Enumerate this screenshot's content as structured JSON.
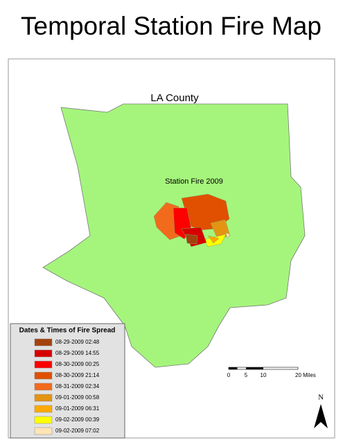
{
  "title": "Temporal Station Fire Map",
  "map": {
    "county_label": "LA County",
    "fire_label": "Station Fire 2009"
  },
  "legend": {
    "title": "Dates & Times of Fire Spread",
    "items": [
      {
        "label": "08-29-2009 02:48",
        "color": "#a3420d"
      },
      {
        "label": "08-29-2009 14:55",
        "color": "#d60000"
      },
      {
        "label": "08-30-2009 00:25",
        "color": "#ff0000"
      },
      {
        "label": "08-30-2009 21:14",
        "color": "#e05000"
      },
      {
        "label": "08-31-2009 02:34",
        "color": "#f26a1c"
      },
      {
        "label": "09-01-2009 00:58",
        "color": "#e39412"
      },
      {
        "label": "09-01-2009 06:31",
        "color": "#ffaa00"
      },
      {
        "label": "09-02-2009 00:39",
        "color": "#ffff00"
      },
      {
        "label": "09-02-2009 07:02",
        "color": "#ffe4b5"
      }
    ]
  },
  "scale_bar": {
    "labels": [
      "0",
      "5",
      "10",
      "20 Miles"
    ]
  },
  "north_arrow": {
    "label": "N"
  }
}
